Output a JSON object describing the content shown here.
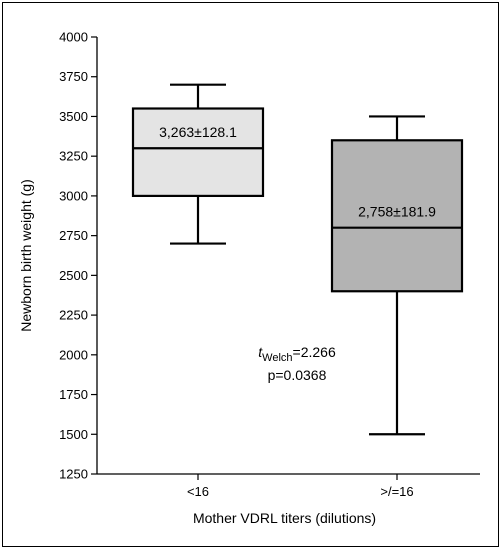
{
  "chart_data": {
    "type": "boxplot",
    "xlabel": "Mother VDRL titers (dilutions)",
    "ylabel": "Newborn birth weight (g)",
    "ylim": [
      1250,
      4000
    ],
    "yticks": [
      1250,
      1500,
      1750,
      2000,
      2250,
      2500,
      2750,
      3000,
      3250,
      3500,
      3750,
      4000
    ],
    "grid": false,
    "categories": [
      "<16",
      ">/=16"
    ],
    "boxes": [
      {
        "category": "<16",
        "whisker_low": 2700,
        "q1": 3000,
        "median": 3300,
        "q3": 3550,
        "whisker_high": 3700,
        "label": "3,263±128.1",
        "fill": "#e4e4e4"
      },
      {
        "category": ">/=16",
        "whisker_low": 1500,
        "q1": 2400,
        "median": 2800,
        "q3": 3350,
        "whisker_high": 3500,
        "label": "2,758±181.9",
        "fill": "#b3b3b3"
      }
    ],
    "annotation": {
      "stat_symbol": "t",
      "stat_subscript": "Welch",
      "stat_value": "=2.266",
      "p_value": "p=0.0368"
    }
  }
}
